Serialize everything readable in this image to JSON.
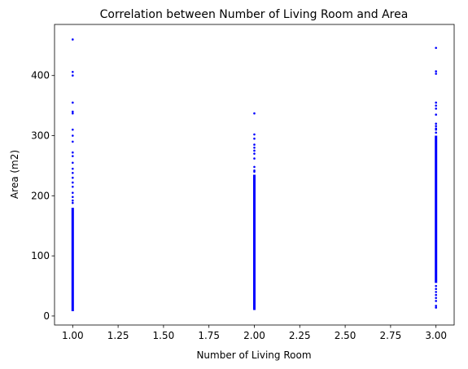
{
  "chart_data": {
    "type": "scatter",
    "title": "Correlation between Number of Living Room and Area",
    "xlabel": "Number of Living Room",
    "ylabel": "Area (m2)",
    "xlim": [
      0.9,
      3.1
    ],
    "ylim": [
      -15,
      485
    ],
    "grid": false,
    "legend": "none",
    "marker_color": "#0000ff",
    "x_ticks": [
      "1.00",
      "1.25",
      "1.50",
      "1.75",
      "2.00",
      "2.25",
      "2.50",
      "2.75",
      "3.00"
    ],
    "x_tick_values": [
      1.0,
      1.25,
      1.5,
      1.75,
      2.0,
      2.25,
      2.5,
      2.75,
      3.0
    ],
    "y_ticks": [
      "0",
      "100",
      "200",
      "300",
      "400"
    ],
    "y_tick_values": [
      0,
      100,
      200,
      300,
      400
    ],
    "groups": [
      {
        "x": 1.0,
        "dense_range": [
          8,
          180
        ],
        "outliers": [
          460,
          406,
          400,
          355,
          340,
          337,
          310,
          300,
          290,
          272,
          266,
          255,
          245,
          238,
          230,
          222,
          215,
          205,
          198,
          192,
          188
        ]
      },
      {
        "x": 2.0,
        "dense_range": [
          10,
          235
        ],
        "outliers": [
          337,
          302,
          295,
          285,
          280,
          275,
          270,
          262,
          248,
          242,
          240
        ]
      },
      {
        "x": 3.0,
        "dense_range": [
          55,
          300
        ],
        "outliers": [
          446,
          407,
          403,
          355,
          350,
          345,
          335,
          320,
          316,
          312,
          310,
          305,
          50,
          45,
          40,
          35,
          30,
          25,
          17,
          14
        ]
      }
    ]
  }
}
